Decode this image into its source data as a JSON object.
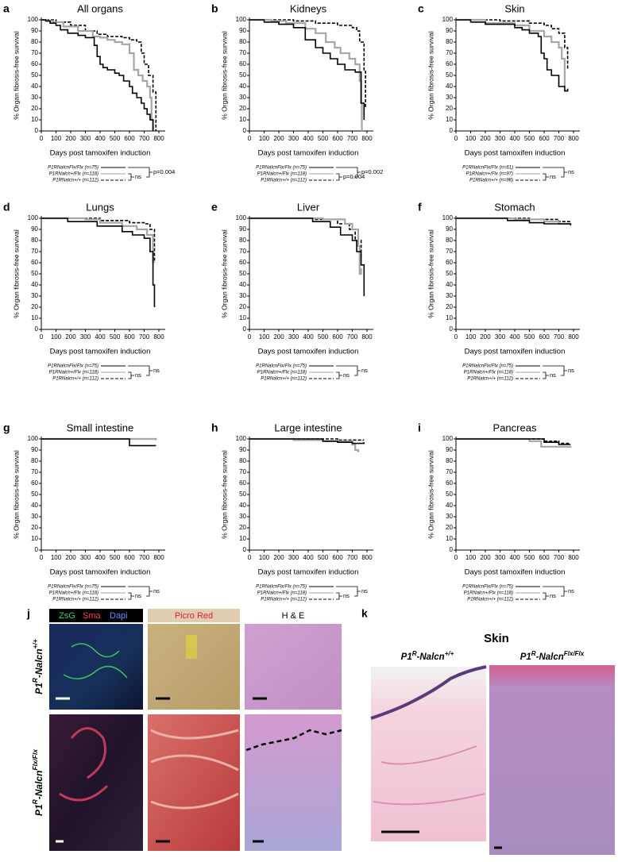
{
  "chart_data": [
    {
      "type": "line",
      "label": "a",
      "title": "All organs",
      "ylabel": "% Organ fibrosis-free survival",
      "xlabel": "Days post tamoxifen induction",
      "xlim": [
        0,
        800
      ],
      "xticks": [
        0,
        100,
        200,
        300,
        400,
        500,
        600,
        700,
        800
      ],
      "ylim": [
        0,
        100
      ],
      "yticks": [
        0,
        10,
        20,
        30,
        40,
        50,
        60,
        70,
        80,
        90,
        100
      ],
      "series": [
        {
          "name": "P1RNalcnFlx/Flx (n=75)",
          "color": "#000000",
          "line_style": "solid",
          "x": [
            0,
            30,
            60,
            100,
            130,
            180,
            250,
            300,
            360,
            380,
            400,
            420,
            450,
            500,
            530,
            560,
            600,
            620,
            650,
            680,
            700,
            720,
            740,
            760
          ],
          "values": [
            100,
            99,
            97,
            95,
            91,
            88,
            86,
            84,
            77,
            67,
            60,
            57,
            55,
            52,
            50,
            45,
            40,
            34,
            30,
            25,
            20,
            15,
            10,
            0
          ]
        },
        {
          "name": "P1RNalcn+/Flx (n=118)",
          "color": "#a6a6a6",
          "line_style": "solid",
          "x": [
            0,
            40,
            80,
            150,
            250,
            350,
            400,
            450,
            500,
            550,
            600,
            630,
            660,
            690,
            720,
            740,
            750,
            760
          ],
          "values": [
            100,
            99,
            98,
            94,
            90,
            85,
            84,
            82,
            80,
            78,
            70,
            55,
            50,
            45,
            40,
            30,
            10,
            0
          ]
        },
        {
          "name": "P1RNalcn+/+ (n=112)",
          "color": "#000000",
          "line_style": "dashed",
          "x": [
            0,
            100,
            200,
            300,
            380,
            450,
            550,
            600,
            650,
            680,
            700,
            730,
            760,
            780
          ],
          "values": [
            100,
            98,
            95,
            90,
            87,
            85,
            84,
            82,
            80,
            70,
            60,
            50,
            35,
            0
          ]
        }
      ],
      "annotations": [
        "ns",
        "p=0.004"
      ]
    },
    {
      "type": "line",
      "label": "b",
      "title": "Kidneys",
      "ylabel": "% Organ fibrosis-free survival",
      "xlabel": "Days post tamoxifen induction",
      "xlim": [
        0,
        800
      ],
      "xticks": [
        0,
        100,
        200,
        300,
        400,
        500,
        600,
        700,
        800
      ],
      "ylim": [
        0,
        100
      ],
      "yticks": [
        0,
        10,
        20,
        30,
        40,
        50,
        60,
        70,
        80,
        90,
        100
      ],
      "series": [
        {
          "name": "P1RNalcnFlx/Flx (n=75)",
          "color": "#000000",
          "line_style": "solid",
          "x": [
            0,
            100,
            200,
            300,
            380,
            450,
            500,
            550,
            600,
            650,
            720,
            760,
            780
          ],
          "values": [
            100,
            98,
            96,
            93,
            82,
            75,
            70,
            65,
            60,
            55,
            53,
            25,
            10
          ]
        },
        {
          "name": "P1RNalcn+/Flx (n=118)",
          "color": "#a6a6a6",
          "line_style": "solid",
          "x": [
            0,
            150,
            250,
            380,
            450,
            520,
            580,
            620,
            680,
            720,
            750,
            760,
            765
          ],
          "values": [
            100,
            99,
            97,
            92,
            88,
            80,
            75,
            70,
            65,
            60,
            45,
            25,
            0
          ]
        },
        {
          "name": "P1RNalcn+/+ (n=112)",
          "color": "#000000",
          "line_style": "dashed",
          "x": [
            0,
            300,
            450,
            600,
            700,
            730,
            750,
            780,
            790
          ],
          "values": [
            100,
            99,
            97,
            95,
            93,
            90,
            80,
            55,
            20
          ]
        }
      ],
      "annotations": [
        "p=0.004",
        "p=0.002"
      ]
    },
    {
      "type": "line",
      "label": "c",
      "title": "Skin",
      "ylabel": "% Organ fibrosis-free survival",
      "xlabel": "Days post tamoxifen induction",
      "xlim": [
        0,
        800
      ],
      "xticks": [
        0,
        100,
        200,
        300,
        400,
        500,
        600,
        700,
        800
      ],
      "ylim": [
        0,
        100
      ],
      "yticks": [
        0,
        10,
        20,
        30,
        40,
        50,
        60,
        70,
        80,
        90,
        100
      ],
      "series": [
        {
          "name": "P1RNalcnFlx/Flx (n=61)",
          "color": "#000000",
          "line_style": "solid",
          "x": [
            0,
            100,
            200,
            400,
            450,
            500,
            560,
            580,
            600,
            620,
            650,
            700,
            740,
            760
          ],
          "values": [
            100,
            98,
            96,
            93,
            91,
            88,
            85,
            70,
            65,
            55,
            50,
            40,
            36,
            38
          ]
        },
        {
          "name": "P1RNalcn+/Flx (n=97)",
          "color": "#a6a6a6",
          "line_style": "solid",
          "x": [
            0,
            200,
            400,
            500,
            600,
            650,
            700,
            720,
            740
          ],
          "values": [
            100,
            97,
            95,
            90,
            85,
            80,
            75,
            65,
            40
          ]
        },
        {
          "name": "P1RNalcn+/+ (n=98)",
          "color": "#000000",
          "line_style": "dashed",
          "x": [
            0,
            300,
            500,
            600,
            650,
            700,
            740,
            760
          ],
          "values": [
            100,
            99,
            97,
            95,
            92,
            88,
            75,
            55
          ]
        }
      ],
      "annotations": [
        "ns",
        "ns"
      ]
    },
    {
      "type": "line",
      "label": "d",
      "title": "Lungs",
      "ylabel": "% Organ fibrosis-free survival",
      "xlabel": "Days post tamoxifen induction",
      "xlim": [
        0,
        800
      ],
      "xticks": [
        0,
        100,
        200,
        300,
        400,
        500,
        600,
        700,
        800
      ],
      "ylim": [
        0,
        100
      ],
      "yticks": [
        0,
        10,
        20,
        30,
        40,
        50,
        60,
        70,
        80,
        90,
        100
      ],
      "series": [
        {
          "name": "P1RNalcnFlx/Flx (n=75)",
          "color": "#000000",
          "line_style": "solid",
          "x": [
            0,
            180,
            380,
            550,
            620,
            700,
            740,
            760,
            770
          ],
          "values": [
            100,
            97,
            93,
            88,
            85,
            82,
            70,
            40,
            20
          ]
        },
        {
          "name": "P1RNalcn+/Flx (n=118)",
          "color": "#a6a6a6",
          "line_style": "solid",
          "x": [
            0,
            300,
            400,
            550,
            650,
            720,
            760
          ],
          "values": [
            100,
            99,
            96,
            93,
            90,
            85,
            60
          ]
        },
        {
          "name": "P1RNalcn+/+ (n=112)",
          "color": "#000000",
          "line_style": "dashed",
          "x": [
            0,
            400,
            600,
            700,
            740,
            770
          ],
          "values": [
            100,
            98,
            96,
            95,
            90,
            60
          ]
        }
      ],
      "annotations": [
        "ns",
        "ns"
      ]
    },
    {
      "type": "line",
      "label": "e",
      "title": "Liver",
      "ylabel": "% Organ fibrosis-free survival",
      "xlabel": "Days post tamoxifen induction",
      "xlim": [
        0,
        800
      ],
      "xticks": [
        0,
        100,
        200,
        300,
        400,
        500,
        600,
        700,
        800
      ],
      "ylim": [
        0,
        100
      ],
      "yticks": [
        0,
        10,
        20,
        30,
        40,
        50,
        60,
        70,
        80,
        90,
        100
      ],
      "series": [
        {
          "name": "P1RNalcnFlx/Flx (n=75)",
          "color": "#000000",
          "line_style": "solid",
          "x": [
            0,
            430,
            550,
            620,
            700,
            730,
            760,
            780
          ],
          "values": [
            100,
            97,
            92,
            85,
            80,
            70,
            58,
            30
          ]
        },
        {
          "name": "P1RNalcn+/Flx (n=118)",
          "color": "#a6a6a6",
          "line_style": "solid",
          "x": [
            0,
            500,
            650,
            700,
            740,
            750,
            760
          ],
          "values": [
            100,
            99,
            95,
            90,
            75,
            50,
            55
          ]
        },
        {
          "name": "P1RNalcn+/+ (n=112)",
          "color": "#000000",
          "line_style": "dashed",
          "x": [
            0,
            450,
            600,
            680,
            720,
            760
          ],
          "values": [
            100,
            99,
            95,
            90,
            80,
            65
          ]
        }
      ],
      "annotations": [
        "ns",
        "ns"
      ]
    },
    {
      "type": "line",
      "label": "f",
      "title": "Stomach",
      "ylabel": "% Organ fibrosis-free survival",
      "xlabel": "Days post tamoxifen induction",
      "xlim": [
        0,
        800
      ],
      "xticks": [
        0,
        100,
        200,
        300,
        400,
        500,
        600,
        700,
        800
      ],
      "ylim": [
        0,
        100
      ],
      "yticks": [
        0,
        10,
        20,
        30,
        40,
        50,
        60,
        70,
        80,
        90,
        100
      ],
      "series": [
        {
          "name": "P1RNalcnFlx/Flx (n=75)",
          "color": "#000000",
          "line_style": "solid",
          "x": [
            0,
            350,
            500,
            600,
            780
          ],
          "values": [
            100,
            98,
            96,
            95,
            94
          ]
        },
        {
          "name": "P1RNalcn+/Flx (n=118)",
          "color": "#a6a6a6",
          "line_style": "solid",
          "x": [
            0,
            400,
            600,
            700,
            780
          ],
          "values": [
            100,
            99,
            97,
            95,
            93
          ]
        },
        {
          "name": "P1RNalcn+/+ (n=112)",
          "color": "#000000",
          "line_style": "dashed",
          "x": [
            0,
            500,
            700,
            780
          ],
          "values": [
            100,
            99,
            97,
            96
          ]
        }
      ],
      "annotations": [
        "ns",
        "ns"
      ]
    },
    {
      "type": "line",
      "label": "g",
      "title": "Small intestine",
      "ylabel": "% Organ fibrosis-free survival",
      "xlabel": "Days post tamoxifen induction",
      "xlim": [
        0,
        800
      ],
      "xticks": [
        0,
        100,
        200,
        300,
        400,
        500,
        600,
        700,
        800
      ],
      "ylim": [
        0,
        100
      ],
      "yticks": [
        0,
        10,
        20,
        30,
        40,
        50,
        60,
        70,
        80,
        90,
        100
      ],
      "series": [
        {
          "name": "P1RNalcnFlx/Flx (n=75)",
          "color": "#000000",
          "line_style": "solid",
          "x": [
            0,
            600,
            780
          ],
          "values": [
            100,
            94,
            94
          ]
        },
        {
          "name": "P1RNalcn+/Flx (n=118)",
          "color": "#a6a6a6",
          "line_style": "solid",
          "x": [
            0,
            780
          ],
          "values": [
            100,
            99
          ]
        },
        {
          "name": "P1RNalcn+/+ (n=112)",
          "color": "#000000",
          "line_style": "dashed",
          "x": [
            0,
            780
          ],
          "values": [
            100,
            99
          ]
        }
      ],
      "annotations": [
        "ns",
        "ns"
      ]
    },
    {
      "type": "line",
      "label": "h",
      "title": "Large intestine",
      "ylabel": "% Organ fibrosis-free survival",
      "xlabel": "Days post tamoxifen induction",
      "xlim": [
        0,
        800
      ],
      "xticks": [
        0,
        100,
        200,
        300,
        400,
        500,
        600,
        700,
        800
      ],
      "ylim": [
        0,
        100
      ],
      "yticks": [
        0,
        10,
        20,
        30,
        40,
        50,
        60,
        70,
        80,
        90,
        100
      ],
      "series": [
        {
          "name": "P1RNalcnFlx/Flx (n=75)",
          "color": "#000000",
          "line_style": "solid",
          "x": [
            0,
            500,
            600,
            700,
            780
          ],
          "values": [
            100,
            98,
            97,
            96,
            97
          ]
        },
        {
          "name": "P1RNalcn+/Flx (n=118)",
          "color": "#a6a6a6",
          "line_style": "solid",
          "x": [
            0,
            300,
            500,
            700,
            720,
            740
          ],
          "values": [
            100,
            99,
            98,
            95,
            90,
            88
          ]
        },
        {
          "name": "P1RNalcn+/+ (n=112)",
          "color": "#000000",
          "line_style": "dashed",
          "x": [
            0,
            600,
            780
          ],
          "values": [
            100,
            99,
            99
          ]
        }
      ],
      "annotations": [
        "ns",
        "ns"
      ]
    },
    {
      "type": "line",
      "label": "i",
      "title": "Pancreas",
      "ylabel": "% Organ fibrosis-free survival",
      "xlabel": "Days post tamoxifen induction",
      "xlim": [
        0,
        800
      ],
      "xticks": [
        0,
        100,
        200,
        300,
        400,
        500,
        600,
        700,
        800
      ],
      "ylim": [
        0,
        100
      ],
      "yticks": [
        0,
        10,
        20,
        30,
        40,
        50,
        60,
        70,
        80,
        90,
        100
      ],
      "series": [
        {
          "name": "P1RNalcnFlx/Flx (n=75)",
          "color": "#000000",
          "line_style": "solid",
          "x": [
            0,
            600,
            700,
            780
          ],
          "values": [
            100,
            97,
            95,
            95
          ]
        },
        {
          "name": "P1RNalcn+/Flx (n=118)",
          "color": "#a6a6a6",
          "line_style": "solid",
          "x": [
            0,
            500,
            580,
            780
          ],
          "values": [
            100,
            98,
            93,
            92
          ]
        },
        {
          "name": "P1RNalcn+/+ (n=112)",
          "color": "#000000",
          "line_style": "dashed",
          "x": [
            0,
            600,
            700,
            780
          ],
          "values": [
            100,
            98,
            96,
            96
          ]
        }
      ],
      "annotations": [
        "ns",
        "ns"
      ]
    }
  ],
  "panel_j": {
    "label": "j",
    "stains": [
      "ZsG",
      "Sma",
      "Dapi"
    ],
    "picro": "Picro Red",
    "he": "H & E",
    "rows": [
      [
        "P1",
        "R",
        "-Nalcn",
        "+/+"
      ],
      [
        "P1",
        "R",
        "-Nalcn",
        "Flx/Flx"
      ]
    ]
  },
  "panel_k": {
    "label": "k",
    "title": "Skin",
    "columns": [
      [
        "P1",
        "R",
        "-Nalcn",
        "+/+"
      ],
      [
        "P1",
        "R",
        "-Nalcn",
        "Flx/Flx"
      ]
    ]
  }
}
